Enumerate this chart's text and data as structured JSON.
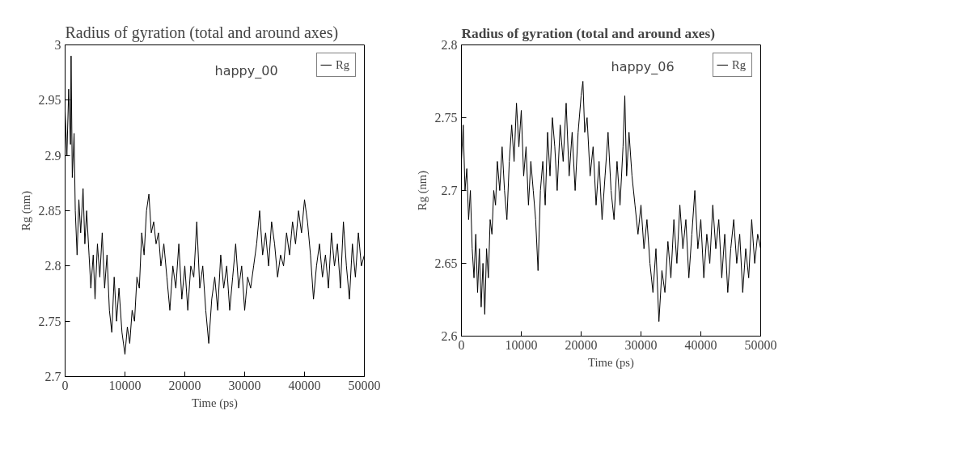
{
  "chart_data": [
    {
      "type": "line",
      "title": "Radius of gyration (total and around axes)",
      "xlabel": "Time (ps)",
      "ylabel": "Rg (nm)",
      "annotations": [
        "happy_00"
      ],
      "legend": "top right",
      "grid": false,
      "xlim": [
        0,
        50000
      ],
      "xticks": [
        0,
        10000,
        20000,
        30000,
        40000,
        50000
      ],
      "ylim": [
        2.7,
        3
      ],
      "yticks": [
        2.7,
        2.75,
        2.8,
        2.85,
        2.9,
        2.95,
        3
      ],
      "x": [
        0,
        300,
        600,
        900,
        1000,
        1200,
        1500,
        1700,
        2000,
        2300,
        2600,
        3000,
        3300,
        3600,
        4000,
        4300,
        4700,
        5000,
        5400,
        5800,
        6200,
        6600,
        7000,
        7400,
        7800,
        8200,
        8600,
        9000,
        9500,
        10000,
        10400,
        10800,
        11200,
        11600,
        12000,
        12400,
        12800,
        13200,
        13600,
        14000,
        14400,
        14800,
        15200,
        15600,
        16000,
        16500,
        17000,
        17500,
        18000,
        18500,
        19000,
        19500,
        20000,
        20500,
        21000,
        21500,
        22000,
        22500,
        23000,
        23500,
        24000,
        24500,
        25000,
        25500,
        26000,
        26500,
        27000,
        27500,
        28000,
        28500,
        29000,
        29500,
        30000,
        30500,
        31000,
        31500,
        32000,
        32500,
        33000,
        33500,
        34000,
        34500,
        35000,
        35500,
        36000,
        36500,
        37000,
        37500,
        38000,
        38500,
        39000,
        39500,
        40000,
        40500,
        41000,
        41500,
        42000,
        42500,
        43000,
        43500,
        44000,
        44500,
        45000,
        45500,
        46000,
        46500,
        47000,
        47500,
        48000,
        48500,
        49000,
        49500,
        50000
      ],
      "series": [
        {
          "name": "Rg",
          "color": "#000000",
          "values": [
            2.94,
            2.9,
            2.96,
            2.91,
            2.99,
            2.88,
            2.92,
            2.85,
            2.81,
            2.86,
            2.83,
            2.87,
            2.82,
            2.85,
            2.81,
            2.78,
            2.81,
            2.77,
            2.82,
            2.79,
            2.83,
            2.78,
            2.81,
            2.76,
            2.74,
            2.79,
            2.75,
            2.78,
            2.74,
            2.72,
            2.745,
            2.73,
            2.76,
            2.75,
            2.79,
            2.78,
            2.83,
            2.81,
            2.85,
            2.865,
            2.83,
            2.84,
            2.82,
            2.83,
            2.8,
            2.82,
            2.79,
            2.76,
            2.8,
            2.78,
            2.82,
            2.77,
            2.8,
            2.76,
            2.8,
            2.79,
            2.84,
            2.78,
            2.8,
            2.76,
            2.73,
            2.77,
            2.79,
            2.76,
            2.81,
            2.78,
            2.8,
            2.76,
            2.79,
            2.82,
            2.78,
            2.8,
            2.76,
            2.79,
            2.78,
            2.8,
            2.82,
            2.85,
            2.81,
            2.83,
            2.8,
            2.84,
            2.82,
            2.79,
            2.81,
            2.8,
            2.83,
            2.81,
            2.84,
            2.82,
            2.85,
            2.83,
            2.86,
            2.84,
            2.81,
            2.77,
            2.8,
            2.82,
            2.79,
            2.81,
            2.78,
            2.83,
            2.8,
            2.82,
            2.78,
            2.84,
            2.8,
            2.77,
            2.82,
            2.79,
            2.83,
            2.8,
            2.81
          ]
        }
      ]
    },
    {
      "type": "line",
      "title": "Radius of gyration (total and around axes)",
      "xlabel": "Time (ps)",
      "ylabel": "Rg (nm)",
      "annotations": [
        "happy_06"
      ],
      "legend": "top right",
      "grid": false,
      "xlim": [
        0,
        50000
      ],
      "xticks": [
        0,
        10000,
        20000,
        30000,
        40000,
        50000
      ],
      "ylim": [
        2.6,
        2.8
      ],
      "yticks": [
        2.6,
        2.65,
        2.7,
        2.75,
        2.8
      ],
      "x": [
        0,
        300,
        600,
        900,
        1200,
        1500,
        1800,
        2100,
        2400,
        2700,
        3000,
        3300,
        3600,
        3900,
        4200,
        4500,
        4800,
        5100,
        5400,
        5700,
        6000,
        6400,
        6800,
        7200,
        7600,
        8000,
        8400,
        8800,
        9200,
        9600,
        10000,
        10400,
        10800,
        11200,
        11600,
        12000,
        12400,
        12800,
        13200,
        13600,
        14000,
        14400,
        14800,
        15200,
        15600,
        16000,
        16500,
        17000,
        17500,
        18000,
        18500,
        19000,
        19500,
        20000,
        20300,
        20600,
        21000,
        21500,
        22000,
        22500,
        23000,
        23500,
        24000,
        24500,
        25000,
        25500,
        26000,
        26500,
        27000,
        27300,
        27600,
        28000,
        28500,
        29000,
        29500,
        30000,
        30500,
        31000,
        31500,
        32000,
        32500,
        33000,
        33500,
        34000,
        34500,
        35000,
        35500,
        36000,
        36500,
        37000,
        37500,
        38000,
        38500,
        39000,
        39500,
        40000,
        40500,
        41000,
        41500,
        42000,
        42500,
        43000,
        43500,
        44000,
        44500,
        45000,
        45500,
        46000,
        46500,
        47000,
        47500,
        48000,
        48500,
        49000,
        49500,
        50000
      ],
      "series": [
        {
          "name": "Rg",
          "color": "#000000",
          "values": [
            2.72,
            2.745,
            2.7,
            2.715,
            2.68,
            2.7,
            2.66,
            2.64,
            2.67,
            2.63,
            2.66,
            2.62,
            2.65,
            2.615,
            2.66,
            2.64,
            2.68,
            2.67,
            2.7,
            2.69,
            2.72,
            2.7,
            2.73,
            2.7,
            2.68,
            2.72,
            2.745,
            2.72,
            2.76,
            2.73,
            2.755,
            2.71,
            2.73,
            2.69,
            2.72,
            2.7,
            2.68,
            2.645,
            2.7,
            2.72,
            2.69,
            2.74,
            2.71,
            2.75,
            2.73,
            2.7,
            2.745,
            2.72,
            2.76,
            2.71,
            2.74,
            2.7,
            2.74,
            2.765,
            2.775,
            2.74,
            2.75,
            2.71,
            2.73,
            2.69,
            2.72,
            2.68,
            2.71,
            2.74,
            2.7,
            2.68,
            2.72,
            2.69,
            2.73,
            2.765,
            2.71,
            2.74,
            2.71,
            2.69,
            2.67,
            2.69,
            2.66,
            2.68,
            2.65,
            2.63,
            2.66,
            2.61,
            2.645,
            2.63,
            2.665,
            2.64,
            2.68,
            2.65,
            2.69,
            2.66,
            2.68,
            2.64,
            2.67,
            2.7,
            2.66,
            2.68,
            2.64,
            2.67,
            2.65,
            2.69,
            2.66,
            2.68,
            2.64,
            2.67,
            2.63,
            2.66,
            2.68,
            2.65,
            2.67,
            2.63,
            2.66,
            2.64,
            2.68,
            2.65,
            2.67,
            2.66
          ]
        }
      ]
    }
  ]
}
